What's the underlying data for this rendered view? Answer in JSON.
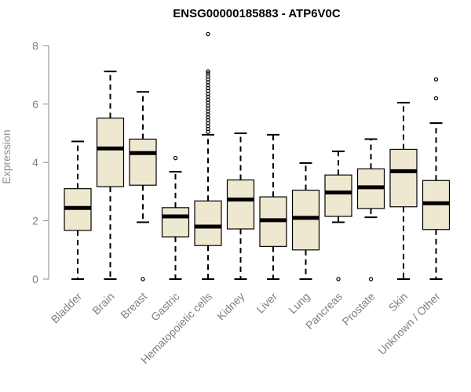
{
  "chart_data": {
    "type": "boxplot",
    "title": "ENSG00000185883 - ATP6V0C",
    "xlabel": "",
    "ylabel": "Expression",
    "ylim": [
      0,
      8.4
    ],
    "yticks": [
      0,
      2,
      4,
      6,
      8
    ],
    "box_fill": "#efe8d0",
    "median_color": "#000000",
    "categories": [
      "Bladder",
      "Brain",
      "Breast",
      "Gastric",
      "Hematopoietic cells",
      "Kidney",
      "Liver",
      "Lung",
      "Pancreas",
      "Prostate",
      "Skin",
      "Unknown / Other"
    ],
    "boxes": [
      {
        "min": 0.0,
        "q1": 1.67,
        "median": 2.44,
        "q3": 3.1,
        "max": 4.72,
        "outliers": []
      },
      {
        "min": 0.0,
        "q1": 3.17,
        "median": 4.48,
        "q3": 5.52,
        "max": 7.12,
        "outliers": []
      },
      {
        "min": 1.95,
        "q1": 3.22,
        "median": 4.32,
        "q3": 4.8,
        "max": 6.42,
        "outliers": [
          0.0
        ]
      },
      {
        "min": 0.0,
        "q1": 1.45,
        "median": 2.15,
        "q3": 2.45,
        "max": 3.68,
        "outliers": [
          4.15
        ]
      },
      {
        "min": 0.0,
        "q1": 1.15,
        "median": 1.8,
        "q3": 2.68,
        "max": 4.95,
        "outliers": [
          5.05,
          5.15,
          5.25,
          5.35,
          5.45,
          5.55,
          5.65,
          5.75,
          5.85,
          5.95,
          6.05,
          6.15,
          6.25,
          6.35,
          6.45,
          6.55,
          6.65,
          6.75,
          6.85,
          6.95,
          7.05,
          7.12,
          8.4
        ]
      },
      {
        "min": 0.0,
        "q1": 1.72,
        "median": 2.73,
        "q3": 3.4,
        "max": 5.0,
        "outliers": []
      },
      {
        "min": 0.0,
        "q1": 1.12,
        "median": 2.02,
        "q3": 2.82,
        "max": 4.95,
        "outliers": []
      },
      {
        "min": 0.0,
        "q1": 1.0,
        "median": 2.1,
        "q3": 3.05,
        "max": 3.98,
        "outliers": []
      },
      {
        "min": 1.95,
        "q1": 2.15,
        "median": 2.97,
        "q3": 3.57,
        "max": 4.38,
        "outliers": [
          0.0
        ]
      },
      {
        "min": 2.12,
        "q1": 2.42,
        "median": 3.15,
        "q3": 3.78,
        "max": 4.8,
        "outliers": [
          0.0
        ]
      },
      {
        "min": 0.0,
        "q1": 2.48,
        "median": 3.7,
        "q3": 4.45,
        "max": 6.05,
        "outliers": []
      },
      {
        "min": 0.0,
        "q1": 1.7,
        "median": 2.6,
        "q3": 3.38,
        "max": 5.35,
        "outliers": [
          6.2,
          6.85
        ]
      }
    ]
  }
}
